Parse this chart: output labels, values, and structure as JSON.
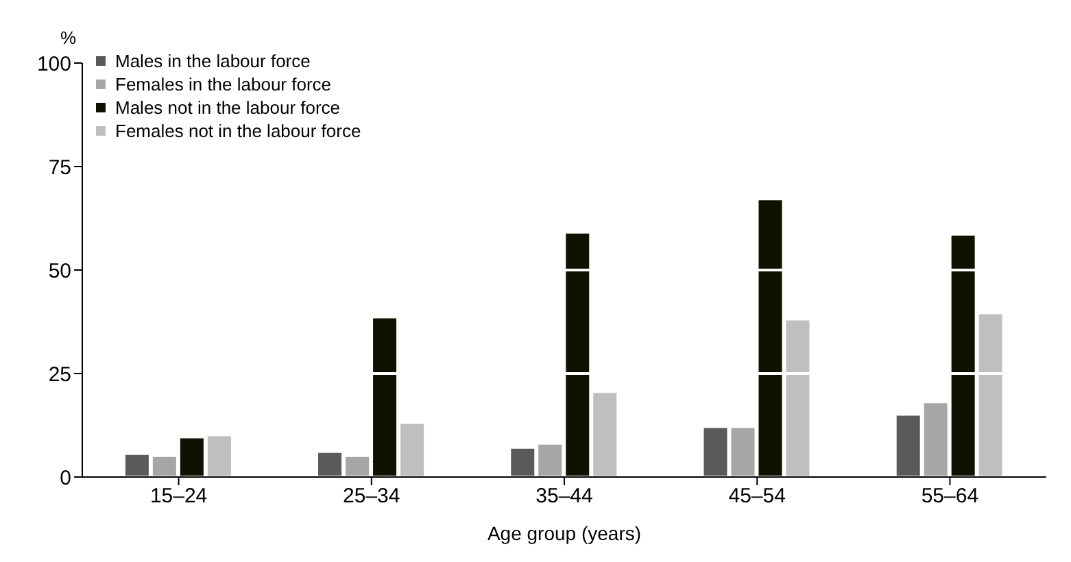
{
  "chart_data": {
    "type": "bar",
    "ylabel": "%",
    "xlabel": "Age group (years)",
    "categories": [
      "15–24",
      "25–34",
      "35–44",
      "45–54",
      "55–64"
    ],
    "series": [
      {
        "name": "Males in the labour force",
        "color": "#5a5a5a",
        "values": [
          5.5,
          6,
          7,
          12,
          15
        ]
      },
      {
        "name": "Females in the labour force",
        "color": "#a6a6a6",
        "values": [
          5,
          5,
          8,
          12,
          18
        ]
      },
      {
        "name": "Males not in the labour force",
        "color": "#111100",
        "values": [
          9.5,
          38.5,
          59,
          67,
          58.5
        ]
      },
      {
        "name": "Females not in the labour force",
        "color": "#bfbfbf",
        "values": [
          10,
          13,
          20.5,
          38,
          39.5
        ]
      }
    ],
    "ylim": [
      0,
      100
    ],
    "yticks": [
      0,
      25,
      50,
      75,
      100
    ],
    "grid": "y",
    "legend": "top left"
  }
}
